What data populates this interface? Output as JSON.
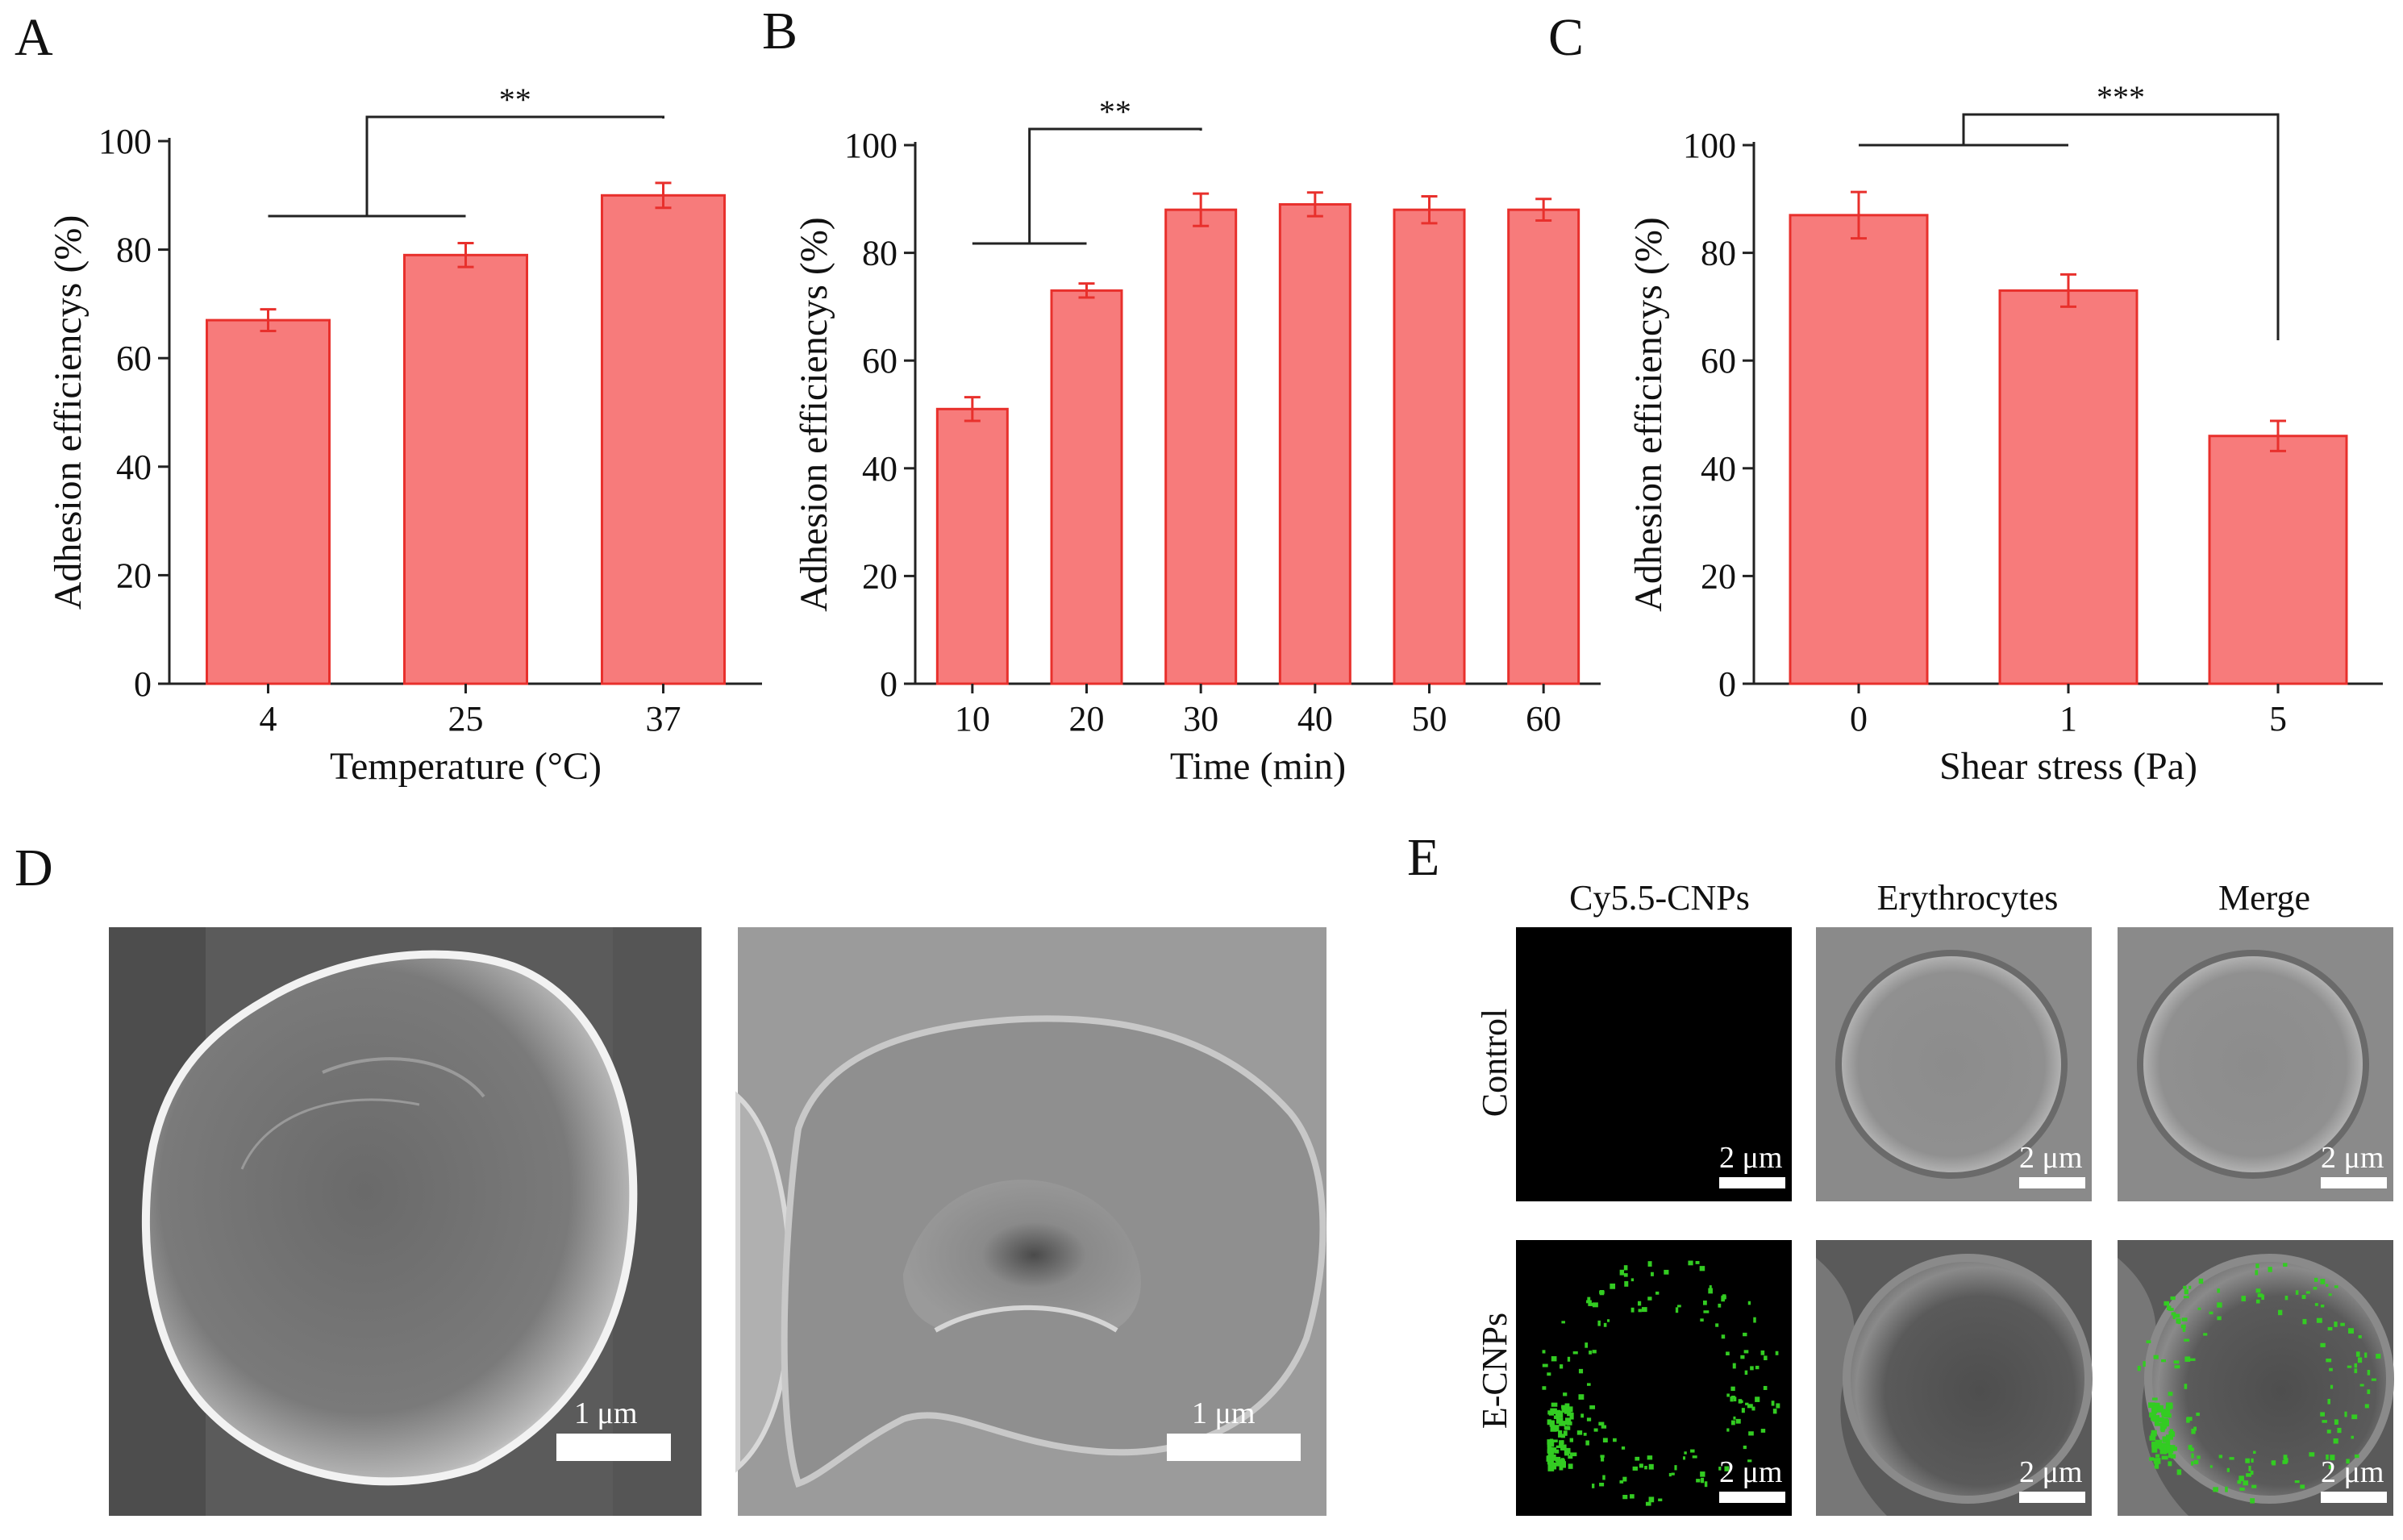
{
  "panels": {
    "A": "A",
    "B": "B",
    "C": "C",
    "D": "D",
    "E": "E"
  },
  "chart_data": [
    {
      "type": "bar",
      "panel": "A",
      "categories": [
        "4",
        "25",
        "37"
      ],
      "values": [
        67,
        79,
        90
      ],
      "errors": [
        2.0,
        2.2,
        2.3
      ],
      "xlabel": "Temperature (°C)",
      "ylabel": "Adhesion efficiencys (%)",
      "ylim": [
        0,
        100
      ],
      "yticks": [
        "0",
        "20",
        "40",
        "60",
        "80",
        "100"
      ],
      "significance": "**",
      "bar_color": "#f77b7b",
      "edge_color": "#e8302c",
      "error_color": "#e8302c"
    },
    {
      "type": "bar",
      "panel": "B",
      "categories": [
        "10",
        "20",
        "30",
        "40",
        "50",
        "60"
      ],
      "values": [
        51,
        73,
        88,
        89,
        88,
        88
      ],
      "errors": [
        2.2,
        1.3,
        3.0,
        2.2,
        2.5,
        2.0
      ],
      "xlabel": "Time (min)",
      "ylabel": "Adhesion efficiencys (%)",
      "ylim": [
        0,
        100
      ],
      "yticks": [
        "0",
        "20",
        "40",
        "60",
        "80",
        "100"
      ],
      "significance": "**",
      "bar_color": "#f77b7b",
      "edge_color": "#e8302c",
      "error_color": "#e8302c"
    },
    {
      "type": "bar",
      "panel": "C",
      "categories": [
        "0",
        "1",
        "5"
      ],
      "values": [
        87,
        73,
        46
      ],
      "errors": [
        4.3,
        3.0,
        2.8
      ],
      "xlabel": "Shear stress (Pa)",
      "ylabel": "Adhesion efficiencys (%)",
      "ylim": [
        0,
        100
      ],
      "yticks": [
        "0",
        "20",
        "40",
        "60",
        "80",
        "100"
      ],
      "significance": "***",
      "bar_color": "#f77b7b",
      "edge_color": "#e8302c",
      "error_color": "#e8302c"
    }
  ],
  "sem": {
    "scale_label": "1 μm"
  },
  "fluorescence": {
    "columns": [
      "Cy5.5-CNPs",
      "Erythrocytes",
      "Merge"
    ],
    "rows": [
      "Control",
      "E-CNPs"
    ],
    "scale_label": "2 μm",
    "dot_color": "#33cc22"
  }
}
